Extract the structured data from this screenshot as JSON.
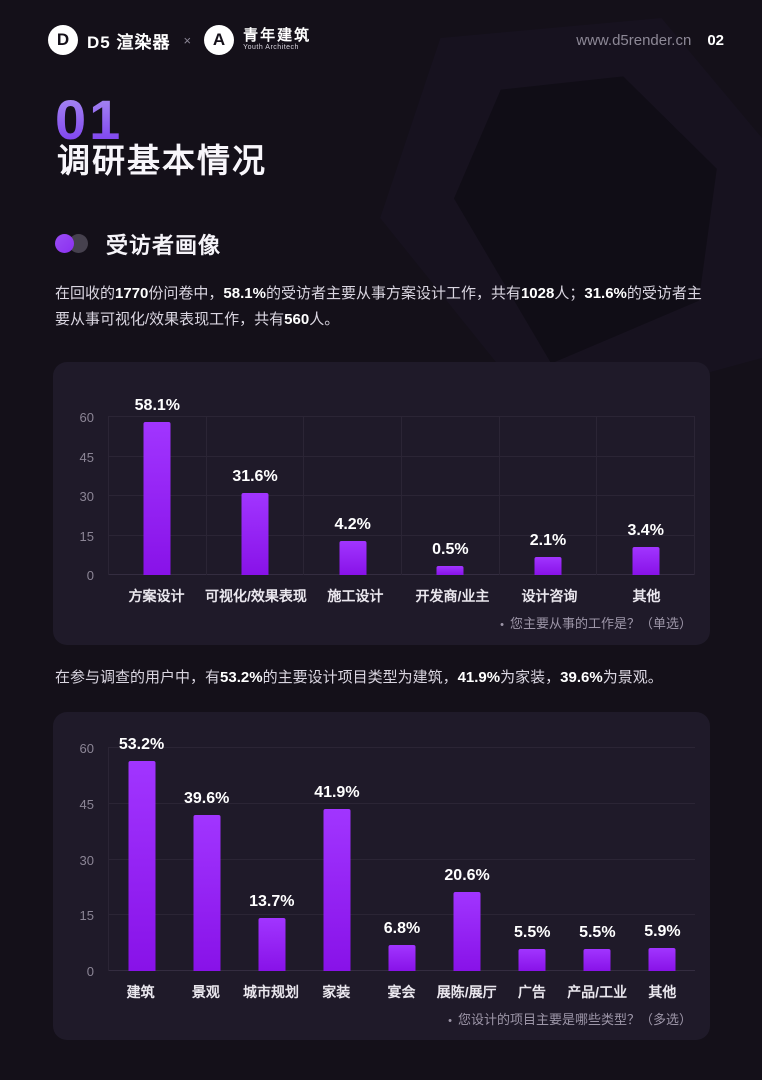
{
  "header": {
    "d5_logo_letter": "D",
    "d5_name": "D5 渲染器",
    "separator": "×",
    "partner_logo_letter": "A",
    "partner_name": "青年建筑",
    "partner_sub": "Youth Architech",
    "website": "www.d5render.cn",
    "page_number": "02"
  },
  "section": {
    "number": "01",
    "title": "调研基本情况",
    "subsection": "受访者画像"
  },
  "paragraphs": [
    [
      {
        "t": "在回收的"
      },
      {
        "t": "1770",
        "b": 1
      },
      {
        "t": "份问卷中，"
      },
      {
        "t": "58.1%",
        "b": 1
      },
      {
        "t": "的受访者主要从事方案设计工作，共有"
      },
      {
        "t": "1028",
        "b": 1
      },
      {
        "t": "人；"
      },
      {
        "t": "31.6%",
        "b": 1
      },
      {
        "t": "的受访者主要从事可视化/效果表现工作，共有"
      },
      {
        "t": "560",
        "b": 1
      },
      {
        "t": "人。"
      }
    ],
    [
      {
        "t": "在参与调查的用户中，有"
      },
      {
        "t": "53.2%",
        "b": 1
      },
      {
        "t": "的主要设计项目类型为建筑，"
      },
      {
        "t": "41.9%",
        "b": 1
      },
      {
        "t": "为家装，"
      },
      {
        "t": "39.6%",
        "b": 1
      },
      {
        "t": "为景观。"
      }
    ]
  ],
  "chart_data": [
    {
      "type": "bar",
      "title": "",
      "categories": [
        "方案设计",
        "可视化/效果表现",
        "施工设计",
        "开发商/业主",
        "设计咨询",
        "其他"
      ],
      "values": [
        58.1,
        31.6,
        4.2,
        0.5,
        2.1,
        3.4
      ],
      "labels": [
        "58.1%",
        "31.6%",
        "4.2%",
        "0.5%",
        "2.1%",
        "3.4%"
      ],
      "display_heights": [
        58,
        31.3,
        13,
        3.3,
        6.7,
        10.5
      ],
      "xlabel": "",
      "ylabel": "",
      "ylim": [
        0,
        60
      ],
      "yticks": [
        0,
        15,
        30,
        45,
        60
      ],
      "grid": "horizontal+vertical",
      "legend": "none",
      "caption_bullet": "•",
      "caption": "您主要从事的工作是？（单选）"
    },
    {
      "type": "bar",
      "title": "",
      "categories": [
        "建筑",
        "景观",
        "城市规划",
        "家装",
        "宴会",
        "展陈/展厅",
        "广告",
        "产品/工业",
        "其他"
      ],
      "values": [
        53.2,
        39.6,
        13.7,
        41.9,
        6.8,
        20.6,
        5.5,
        5.5,
        5.9
      ],
      "labels": [
        "53.2%",
        "39.6%",
        "13.7%",
        "41.9%",
        "6.8%",
        "20.6%",
        "5.5%",
        "5.5%",
        "5.9%"
      ],
      "display_heights": [
        56.5,
        42,
        14.2,
        43.5,
        7,
        21.3,
        6,
        6,
        6.3
      ],
      "xlabel": "",
      "ylabel": "",
      "ylim": [
        0,
        60
      ],
      "yticks": [
        0,
        15,
        30,
        45,
        60
      ],
      "grid": "horizontal",
      "legend": "none",
      "caption_bullet": "•",
      "caption": "您设计的项目主要是哪些类型？（多选）"
    }
  ],
  "colors": {
    "background": "#141019",
    "panel": "#1f1a29",
    "grid": "#2b2535",
    "accent_purple": "#8b2ff0",
    "bar_gradient_top": "#a135ff",
    "bar_gradient_bottom": "#8812e8",
    "text_primary": "#ffffff",
    "text_body": "#dad6e1",
    "text_muted": "#9d96a8",
    "chapter_gradient_top": "#a98ef2",
    "chapter_gradient_bottom": "#7a3bee"
  }
}
